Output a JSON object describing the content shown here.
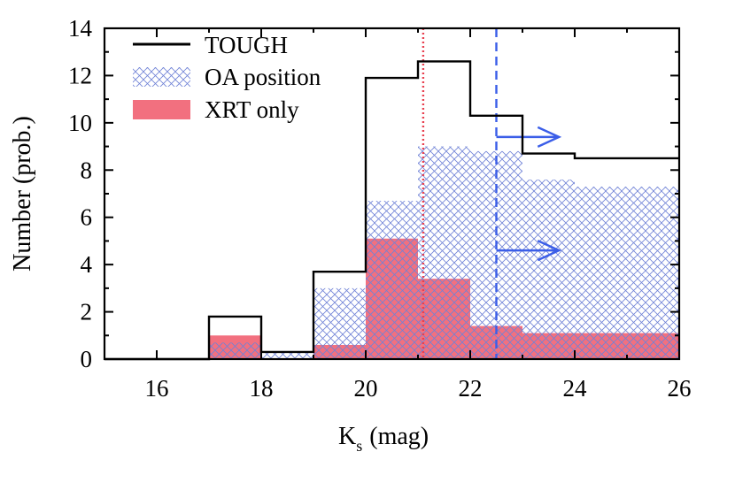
{
  "chart_data": {
    "type": "bar",
    "title": "",
    "xlabel_main": "K",
    "xlabel_sub": "s",
    "xlabel_unit": "(mag)",
    "ylabel": "Number (prob.)",
    "xlim": [
      15,
      26
    ],
    "ylim": [
      0,
      14
    ],
    "xticks": [
      "16",
      "18",
      "20",
      "22",
      "24",
      "26"
    ],
    "yticks": [
      "0",
      "2",
      "4",
      "6",
      "8",
      "10",
      "12",
      "14"
    ],
    "bin_edges": [
      15,
      16,
      17,
      18,
      19,
      20,
      21,
      22,
      23,
      24,
      26
    ],
    "series": [
      {
        "name": "TOUGH",
        "style": "step-line",
        "color": "#000000",
        "values": [
          0,
          0,
          1.8,
          0.3,
          3.7,
          11.9,
          12.6,
          10.3,
          8.7,
          8.5
        ]
      },
      {
        "name": "OA position",
        "style": "crosshatch",
        "color": "#6f82d6",
        "values": [
          0,
          0,
          0.7,
          0.3,
          3.0,
          6.7,
          9.0,
          8.8,
          7.6,
          7.3
        ]
      },
      {
        "name": "XRT only",
        "style": "fill",
        "color": "#f2707f",
        "values": [
          0,
          0,
          1.0,
          0,
          0.6,
          5.1,
          3.4,
          1.4,
          1.1,
          1.1
        ]
      }
    ],
    "vlines": [
      {
        "x": 21.1,
        "style": "dotted",
        "color": "#e8404f"
      },
      {
        "x": 22.5,
        "style": "dashed",
        "color": "#3b5ee8"
      }
    ],
    "arrows": [
      {
        "x_start": 22.5,
        "x_end": 23.7,
        "y": 9.4,
        "color": "#3b5ee8"
      },
      {
        "x_start": 22.5,
        "x_end": 23.7,
        "y": 4.6,
        "color": "#3b5ee8"
      }
    ],
    "legend": {
      "position": "top-left",
      "entries": [
        "TOUGH",
        "OA position",
        "XRT only"
      ]
    }
  }
}
